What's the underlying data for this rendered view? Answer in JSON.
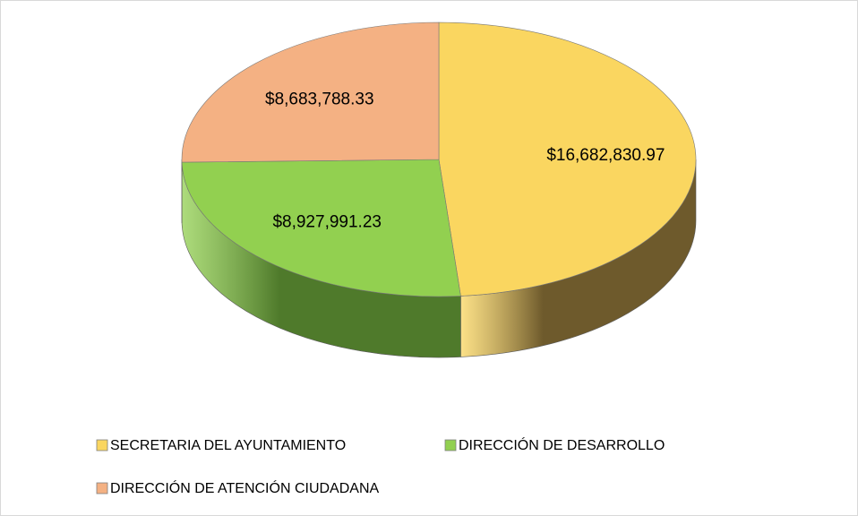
{
  "chart_data": {
    "type": "pie",
    "categories": [
      "SECRETARIA DEL AYUNTAMIENTO",
      "DIRECCIÓN DE DESARROLLO",
      "DIRECCIÓN DE ATENCIÓN CIUDADANA"
    ],
    "values": [
      16682830.97,
      8927991.23,
      8683788.33
    ],
    "value_labels": [
      "$16,682,830.97",
      "$8,927,991.23",
      "$8,683,788.33"
    ],
    "colors": [
      "#fad660",
      "#92d050",
      "#f4b183"
    ],
    "side_colors": [
      "#6e5a2c",
      "#4f7a2b",
      "#8a5c3e"
    ],
    "legend": "bottom"
  }
}
